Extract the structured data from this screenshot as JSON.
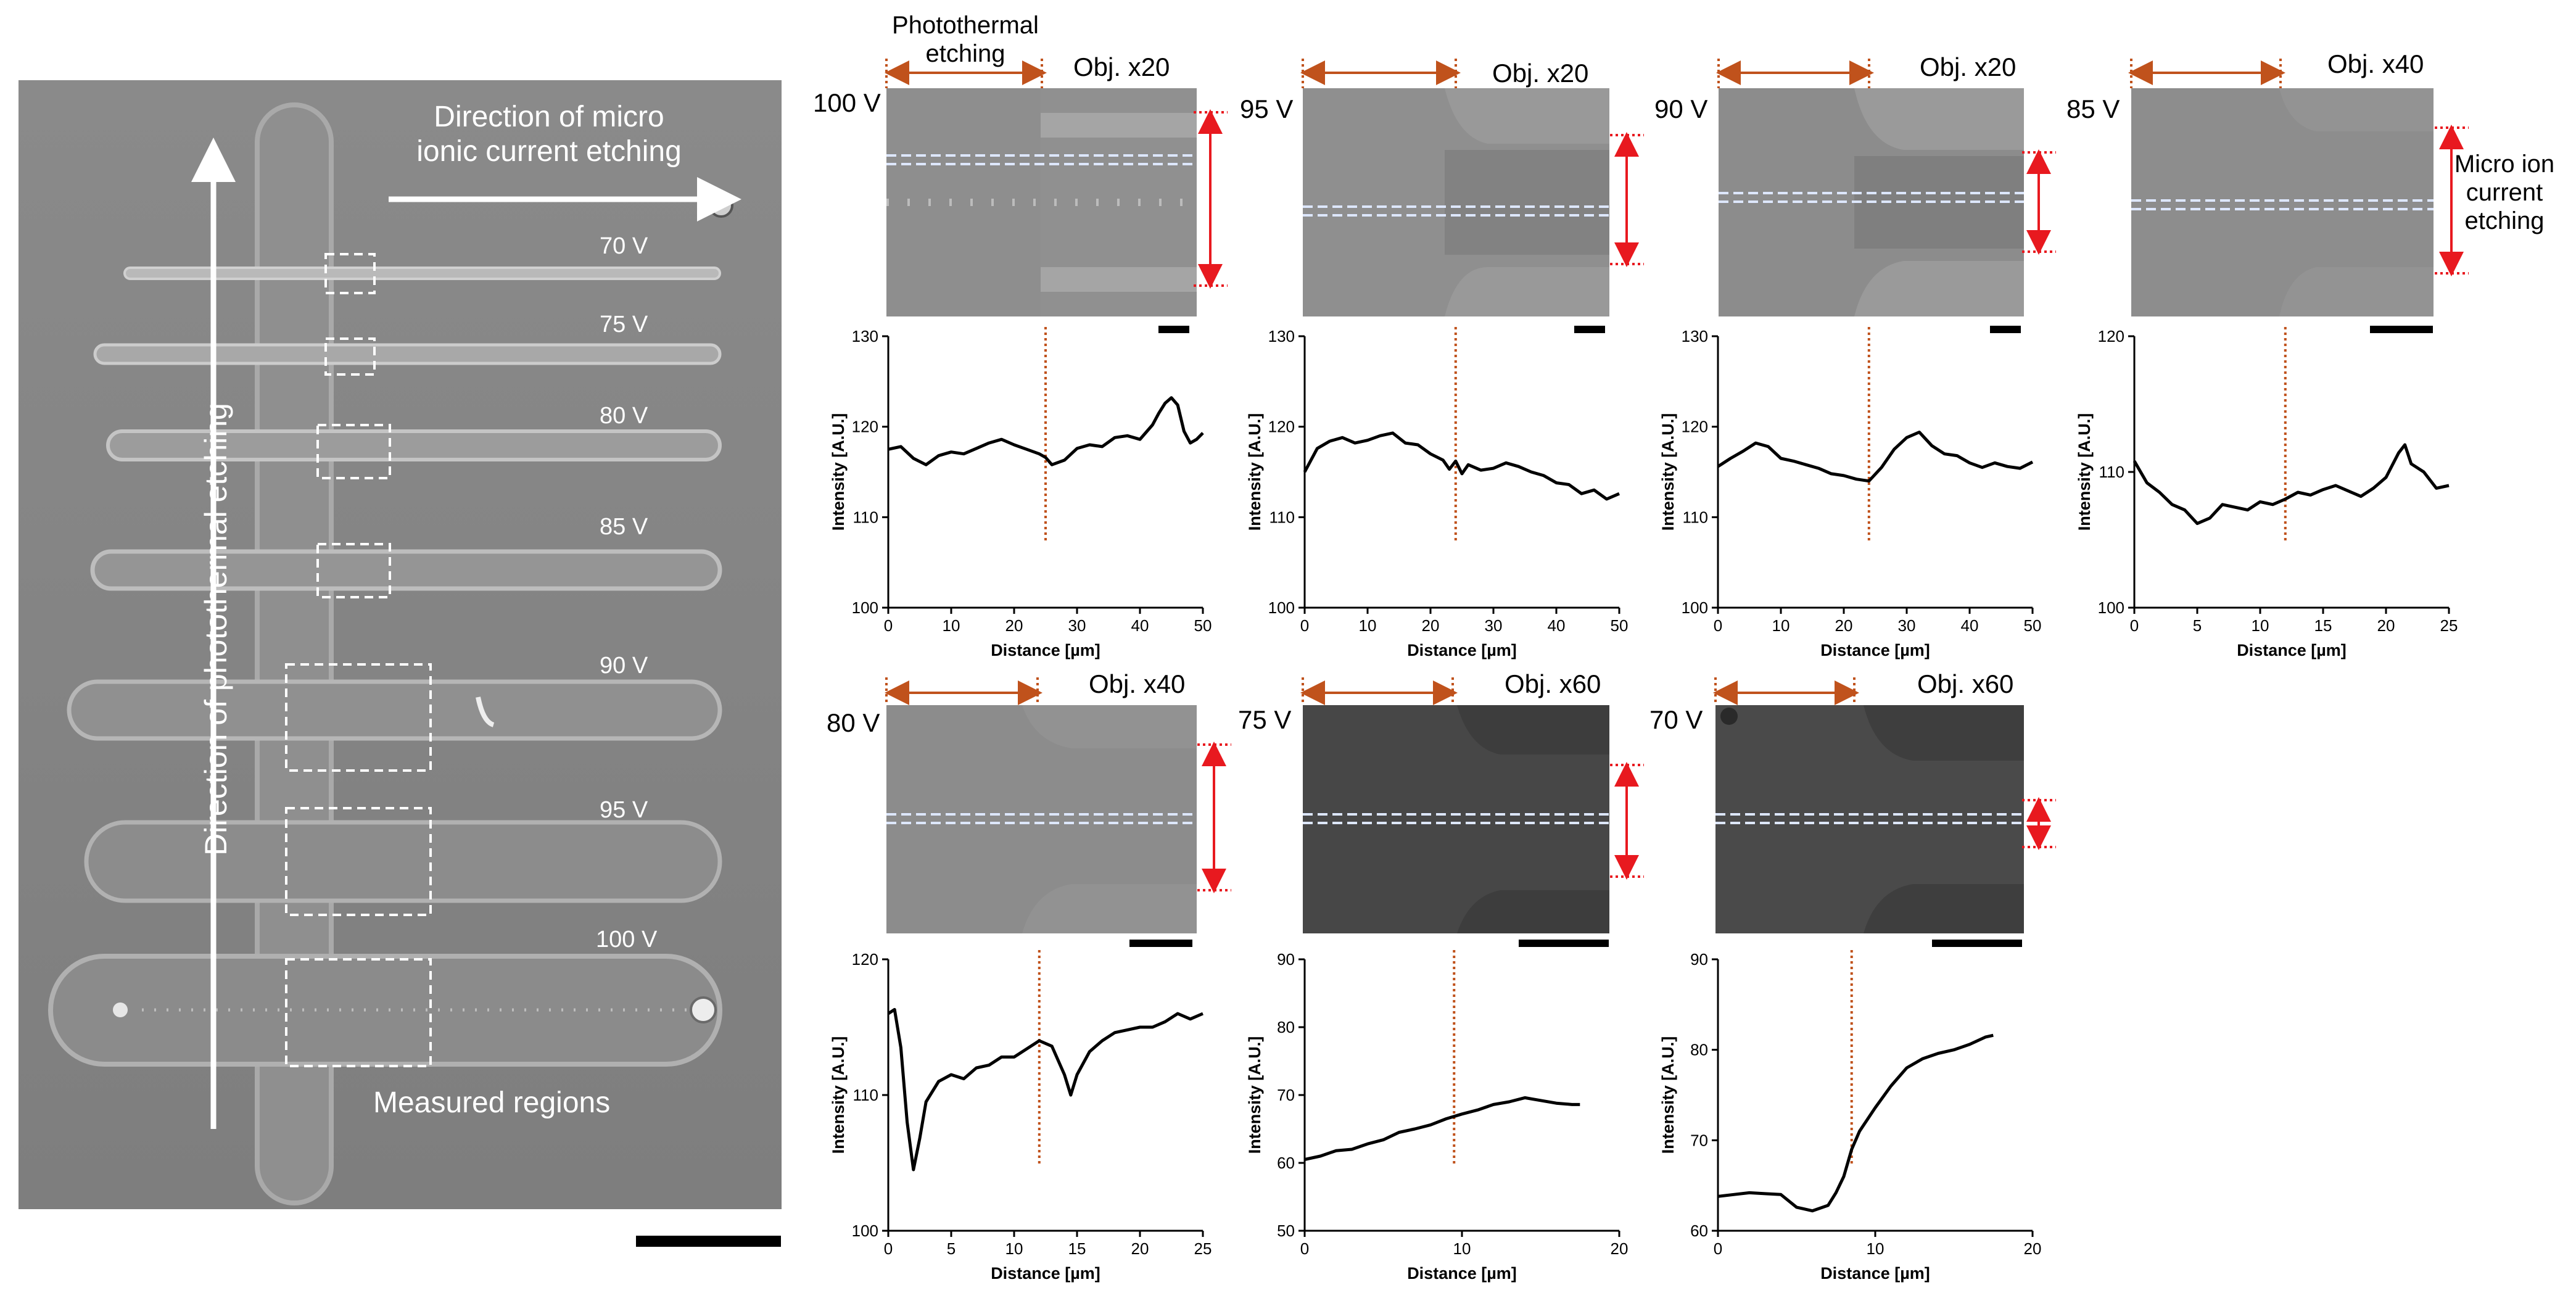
{
  "overview": {
    "micro_direction_label": "Direction of micro\nionic current etching",
    "photothermal_direction_label": "Direction of photothermal etching",
    "measured_regions_label": "Measured regions",
    "channel_labels": [
      "70 V",
      "75 V",
      "80 V",
      "85 V",
      "90 V",
      "95 V",
      "100 V"
    ]
  },
  "annotations": {
    "photothermal_etching": "Photothermal\netching",
    "micro_ion_current_etching": "Micro ion\ncurrent\netching"
  },
  "colors": {
    "trace": "#000000",
    "marker": "#c0521c",
    "arrow_red": "#e8191f",
    "dashed_line": "#bfd0f0"
  },
  "chart_data": [
    {
      "type": "line",
      "voltage_label": "100 V",
      "objective_label": "Obj. x20",
      "xlabel": "Distance [µm]",
      "ylabel": "Intensity [A.U.]",
      "xlim": [
        0,
        50
      ],
      "ylim": [
        100,
        130
      ],
      "xticks": [
        0,
        10,
        20,
        30,
        40,
        50
      ],
      "yticks": [
        100,
        110,
        120,
        130
      ],
      "xtick_labels": [
        "0",
        "10",
        "20",
        "30",
        "40",
        "50"
      ],
      "ytick_labels": [
        "100",
        "110",
        "120",
        "130"
      ],
      "marker_x": 25,
      "x": [
        0,
        2,
        4,
        6,
        8,
        10,
        12,
        14,
        16,
        18,
        20,
        22,
        24,
        25,
        26,
        28,
        30,
        32,
        34,
        36,
        38,
        40,
        42,
        43,
        44,
        45,
        46,
        47,
        48,
        49,
        50
      ],
      "y": [
        117.5,
        117.8,
        116.5,
        115.8,
        116.8,
        117.2,
        117.0,
        117.6,
        118.2,
        118.6,
        118.0,
        117.5,
        117.0,
        116.6,
        115.8,
        116.3,
        117.6,
        118.0,
        117.8,
        118.8,
        119.0,
        118.6,
        120.2,
        121.5,
        122.6,
        123.2,
        122.4,
        119.5,
        118.2,
        118.6,
        119.3
      ]
    },
    {
      "type": "line",
      "voltage_label": "95 V",
      "objective_label": "Obj. x20",
      "xlabel": "Distance [µm]",
      "ylabel": "Intensity [A.U.]",
      "xlim": [
        0,
        50
      ],
      "ylim": [
        100,
        130
      ],
      "xticks": [
        0,
        10,
        20,
        30,
        40,
        50
      ],
      "yticks": [
        100,
        110,
        120,
        130
      ],
      "xtick_labels": [
        "0",
        "10",
        "20",
        "30",
        "40",
        "50"
      ],
      "ytick_labels": [
        "100",
        "110",
        "120",
        "130"
      ],
      "marker_x": 24,
      "x": [
        0,
        2,
        4,
        6,
        8,
        10,
        12,
        14,
        16,
        18,
        20,
        22,
        23,
        24,
        25,
        26,
        28,
        30,
        32,
        34,
        36,
        38,
        40,
        42,
        44,
        46,
        48,
        50
      ],
      "y": [
        115.0,
        117.6,
        118.4,
        118.8,
        118.2,
        118.5,
        119.0,
        119.3,
        118.2,
        118.0,
        117.0,
        116.3,
        115.3,
        116.2,
        114.8,
        115.8,
        115.2,
        115.4,
        116.0,
        115.6,
        115.0,
        114.6,
        113.8,
        113.6,
        112.6,
        113.0,
        112.0,
        112.6
      ]
    },
    {
      "type": "line",
      "voltage_label": "90 V",
      "objective_label": "Obj. x20",
      "xlabel": "Distance [µm]",
      "ylabel": "Intensity [A.U.]",
      "xlim": [
        0,
        50
      ],
      "ylim": [
        100,
        130
      ],
      "xticks": [
        0,
        10,
        20,
        30,
        40,
        50
      ],
      "yticks": [
        100,
        110,
        120,
        130
      ],
      "xtick_labels": [
        "0",
        "10",
        "20",
        "30",
        "40",
        "50"
      ],
      "ytick_labels": [
        "100",
        "110",
        "120",
        "130"
      ],
      "marker_x": 24,
      "x": [
        0,
        2,
        4,
        6,
        8,
        10,
        12,
        14,
        16,
        18,
        20,
        22,
        24,
        26,
        28,
        30,
        32,
        34,
        36,
        38,
        40,
        42,
        44,
        46,
        48,
        50
      ],
      "y": [
        115.6,
        116.5,
        117.3,
        118.2,
        117.8,
        116.5,
        116.2,
        115.8,
        115.4,
        114.8,
        114.6,
        114.2,
        114.0,
        115.5,
        117.5,
        118.8,
        119.4,
        117.9,
        117.0,
        116.8,
        116.0,
        115.5,
        116.0,
        115.6,
        115.4,
        116.1
      ]
    },
    {
      "type": "line",
      "voltage_label": "85 V",
      "objective_label": "Obj. x40",
      "xlabel": "Distance [µm]",
      "ylabel": "Intensity [A.U.]",
      "xlim": [
        0,
        25
      ],
      "ylim": [
        100,
        120
      ],
      "xticks": [
        0,
        5,
        10,
        15,
        20,
        25
      ],
      "yticks": [
        100,
        110,
        120
      ],
      "xtick_labels": [
        "0",
        "5",
        "10",
        "15",
        "20",
        "25"
      ],
      "ytick_labels": [
        "100",
        "110",
        "120"
      ],
      "marker_x": 12,
      "x": [
        0,
        1,
        2,
        3,
        4,
        5,
        6,
        7,
        8,
        9,
        10,
        11,
        12,
        13,
        14,
        15,
        16,
        17,
        18,
        19,
        20,
        21,
        21.5,
        22,
        23,
        24,
        25
      ],
      "y": [
        110.8,
        109.2,
        108.5,
        107.6,
        107.2,
        106.2,
        106.6,
        107.6,
        107.4,
        107.2,
        107.8,
        107.6,
        108.0,
        108.5,
        108.3,
        108.7,
        109.0,
        108.6,
        108.2,
        108.8,
        109.6,
        111.4,
        112.0,
        110.6,
        110.0,
        108.8,
        109.0
      ]
    },
    {
      "type": "line",
      "voltage_label": "80 V",
      "objective_label": "Obj. x40",
      "xlabel": "Distance [µm]",
      "ylabel": "Intensity [A.U.]",
      "xlim": [
        0,
        25
      ],
      "ylim": [
        100,
        120
      ],
      "xticks": [
        0,
        5,
        10,
        15,
        20,
        25
      ],
      "yticks": [
        100,
        110,
        120
      ],
      "xtick_labels": [
        "0",
        "5",
        "10",
        "15",
        "20",
        "25"
      ],
      "ytick_labels": [
        "100",
        "110",
        "120"
      ],
      "marker_x": 12,
      "x": [
        0,
        0.5,
        1,
        1.5,
        2,
        2.5,
        3,
        4,
        5,
        6,
        7,
        8,
        9,
        10,
        11,
        12,
        13,
        14,
        14.5,
        15,
        16,
        17,
        18,
        19,
        20,
        21,
        22,
        23,
        24,
        25
      ],
      "y": [
        116.0,
        116.3,
        113.5,
        108.0,
        104.5,
        106.8,
        109.5,
        111.0,
        111.5,
        111.2,
        112.0,
        112.2,
        112.8,
        112.8,
        113.4,
        114.0,
        113.6,
        111.5,
        110.0,
        111.5,
        113.2,
        114.0,
        114.6,
        114.8,
        115.0,
        115.0,
        115.4,
        116.0,
        115.6,
        116.0
      ]
    },
    {
      "type": "line",
      "voltage_label": "75 V",
      "objective_label": "Obj. x60",
      "xlabel": "Distance [µm]",
      "ylabel": "Intensity [A.U.]",
      "xlim": [
        0,
        20
      ],
      "ylim": [
        50,
        90
      ],
      "xticks": [
        0,
        10,
        20
      ],
      "yticks": [
        50,
        60,
        70,
        80,
        90
      ],
      "xtick_labels": [
        "0",
        "10",
        "20"
      ],
      "ytick_labels": [
        "50",
        "60",
        "70",
        "80",
        "90"
      ],
      "marker_x": 9.5,
      "x": [
        0,
        1,
        2,
        3,
        4,
        5,
        6,
        7,
        8,
        9,
        10,
        11,
        12,
        13,
        14,
        15,
        16,
        17,
        17.5
      ],
      "y": [
        60.5,
        61.0,
        61.8,
        62.0,
        62.8,
        63.4,
        64.5,
        65.0,
        65.6,
        66.5,
        67.2,
        67.8,
        68.6,
        69.0,
        69.6,
        69.2,
        68.8,
        68.6,
        68.6
      ]
    },
    {
      "type": "line",
      "voltage_label": "70 V",
      "objective_label": "Obj. x60",
      "xlabel": "Distance [µm]",
      "ylabel": "Intensity [A.U.]",
      "xlim": [
        0,
        20
      ],
      "ylim": [
        60,
        90
      ],
      "xticks": [
        0,
        10,
        20
      ],
      "yticks": [
        60,
        70,
        80,
        90
      ],
      "xtick_labels": [
        "0",
        "10",
        "20"
      ],
      "ytick_labels": [
        "60",
        "70",
        "80",
        "90"
      ],
      "marker_x": 8.5,
      "x": [
        0,
        1,
        2,
        3,
        4,
        5,
        6,
        7,
        7.5,
        8,
        8.5,
        9,
        10,
        11,
        12,
        13,
        14,
        15,
        16,
        17,
        17.5
      ],
      "y": [
        63.8,
        64.0,
        64.2,
        64.1,
        64.0,
        62.6,
        62.2,
        62.8,
        64.2,
        66.0,
        69.0,
        71.0,
        73.6,
        76.0,
        78.0,
        79.0,
        79.6,
        80.0,
        80.6,
        81.4,
        81.6
      ]
    }
  ]
}
